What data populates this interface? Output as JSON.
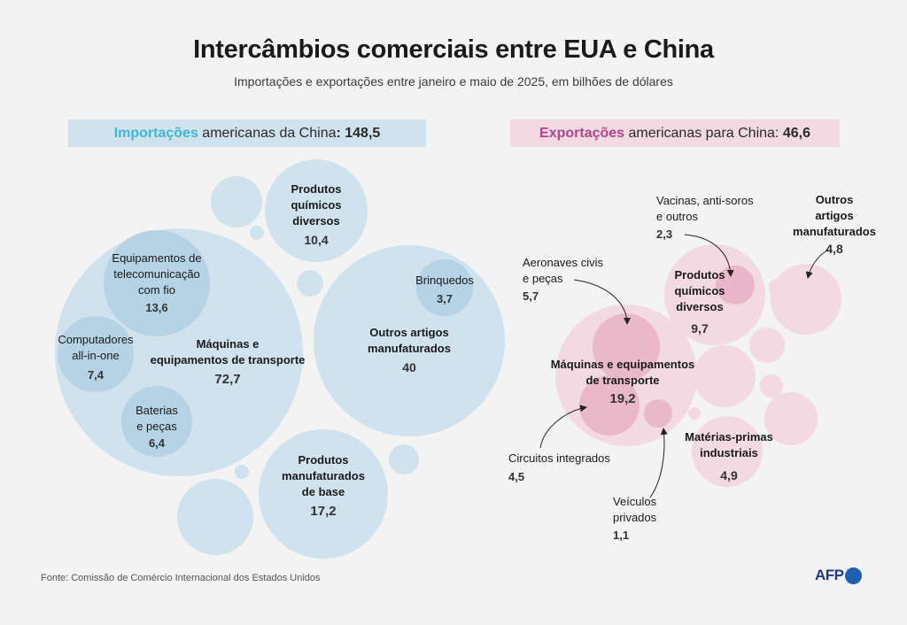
{
  "title": "Intercâmbios comerciais entre EUA e China",
  "subtitle": "Importações e exportações entre janeiro e maio de 2025, em bilhões de dólares",
  "imports_header": {
    "highlight": "Importações",
    "text": " americanas da China",
    "value": ": 148,5"
  },
  "exports_header": {
    "highlight": "Exportações",
    "text": " americanas para China: ",
    "value": "46,6"
  },
  "source": "Fonte: Comissão de Comércio Internacional dos Estados Unidos",
  "logo": "AFP",
  "colors": {
    "import_bubble": "#cfe2ee",
    "import_inner": "#b6d3e5",
    "export_bubble": "#f2d9e2",
    "export_inner": "#e8b3c6",
    "import_accent": "#3fb7d2",
    "export_accent": "#b4458a"
  },
  "chart_data": [
    {
      "type": "bubble",
      "name": "Importações americanas da China",
      "total": 148.5,
      "items": [
        {
          "label": "Máquinas e\nequipamentos de transporte",
          "value": 72.7,
          "value_text": "72,7"
        },
        {
          "label": "Outros artigos\nmanufaturados",
          "value": 40,
          "value_text": "40"
        },
        {
          "label": "Produtos\nmanufaturados\nde base",
          "value": 17.2,
          "value_text": "17,2"
        },
        {
          "label": "Produtos\nquímicos\ndiversos",
          "value": 10.4,
          "value_text": "10,4"
        },
        {
          "label": "Equipamentos de\ntelecomunicação\ncom fio",
          "value": 13.6,
          "value_text": "13,6",
          "parent": "Máquinas e equipamentos de transporte"
        },
        {
          "label": "Computadores\nall-in-one",
          "value": 7.4,
          "value_text": "7,4",
          "parent": "Máquinas e equipamentos de transporte"
        },
        {
          "label": "Baterias\ne peças",
          "value": 6.4,
          "value_text": "6,4",
          "parent": "Máquinas e equipamentos de transporte"
        },
        {
          "label": "Brinquedos",
          "value": 3.7,
          "value_text": "3,7",
          "parent": "Outros artigos manufaturados"
        }
      ]
    },
    {
      "type": "bubble",
      "name": "Exportações americanas para China",
      "total": 46.6,
      "items": [
        {
          "label": "Máquinas e equipamentos\nde transporte",
          "value": 19.2,
          "value_text": "19,2"
        },
        {
          "label": "Produtos\nquímicos\ndiversos",
          "value": 9.7,
          "value_text": "9,7"
        },
        {
          "label": "Matérias-primas\nindustriais",
          "value": 4.9,
          "value_text": "4,9"
        },
        {
          "label": "Outros\nartigos\nmanufaturados",
          "value": 4.8,
          "value_text": "4,8"
        },
        {
          "label": "Aeronaves civis\ne peças",
          "value": 5.7,
          "value_text": "5,7",
          "parent": "Máquinas e equipamentos de transporte"
        },
        {
          "label": "Circuitos integrados",
          "value": 4.5,
          "value_text": "4,5",
          "parent": "Máquinas e equipamentos de transporte"
        },
        {
          "label": "Veículos\nprivados",
          "value": 1.1,
          "value_text": "1,1",
          "parent": "Máquinas e equipamentos de transporte"
        },
        {
          "label": "Vacinas, anti-soros\ne outros",
          "value": 2.3,
          "value_text": "2,3",
          "parent": "Produtos químicos diversos"
        }
      ]
    }
  ]
}
